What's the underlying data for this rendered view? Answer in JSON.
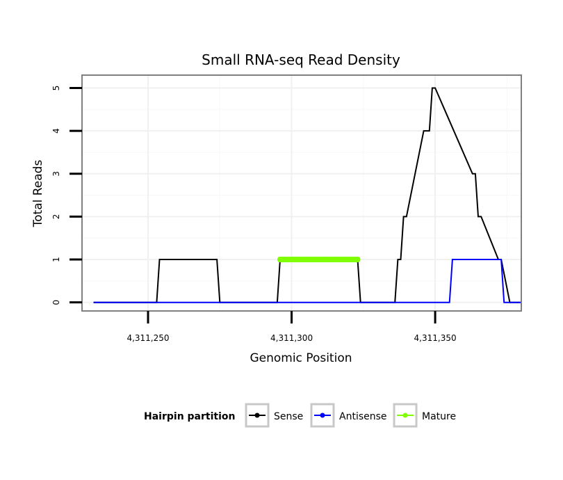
{
  "chart_data": {
    "type": "line",
    "title": "Small RNA-seq Read Density",
    "xlabel": "Genomic Position",
    "ylabel": "Total Reads",
    "xlim": [
      4311227,
      4311380
    ],
    "ylim": [
      -0.2,
      5.3
    ],
    "x_ticks": [
      4311250,
      4311300,
      4311350
    ],
    "x_tick_labels": [
      "4,311,250",
      "4,311,300",
      "4,311,350"
    ],
    "y_ticks": [
      0,
      1,
      2,
      3,
      4,
      5
    ],
    "y_tick_labels": [
      "0",
      "1",
      "2",
      "3",
      "4",
      "5"
    ],
    "grid": true,
    "legend": {
      "title": "Hairpin partition",
      "position": "bottom",
      "entries": [
        "Sense",
        "Antisense",
        "Mature"
      ]
    },
    "series": [
      {
        "name": "Sense",
        "color": "#000000",
        "x": [
          4311231,
          4311253,
          4311254,
          4311274,
          4311275,
          4311295,
          4311296,
          4311323,
          4311324,
          4311336,
          4311337,
          4311338,
          4311339,
          4311340,
          4311346,
          4311348,
          4311349,
          4311350,
          4311363,
          4311364,
          4311365,
          4311366,
          4311372,
          4311373,
          4311376,
          4311377,
          4311384
        ],
        "y": [
          0,
          0,
          1,
          1,
          0,
          0,
          1,
          1,
          0,
          0,
          1,
          1,
          2,
          2,
          4,
          4,
          5,
          5,
          3,
          3,
          2,
          2,
          1,
          1,
          0,
          0,
          0
        ]
      },
      {
        "name": "Antisense",
        "color": "#0000ff",
        "x": [
          4311231,
          4311355,
          4311356,
          4311373,
          4311374,
          4311384
        ],
        "y": [
          0,
          0,
          1,
          1,
          0,
          0
        ]
      },
      {
        "name": "Mature",
        "color": "#7fff00",
        "x": [
          4311296,
          4311323
        ],
        "y": [
          1,
          1
        ]
      }
    ]
  }
}
